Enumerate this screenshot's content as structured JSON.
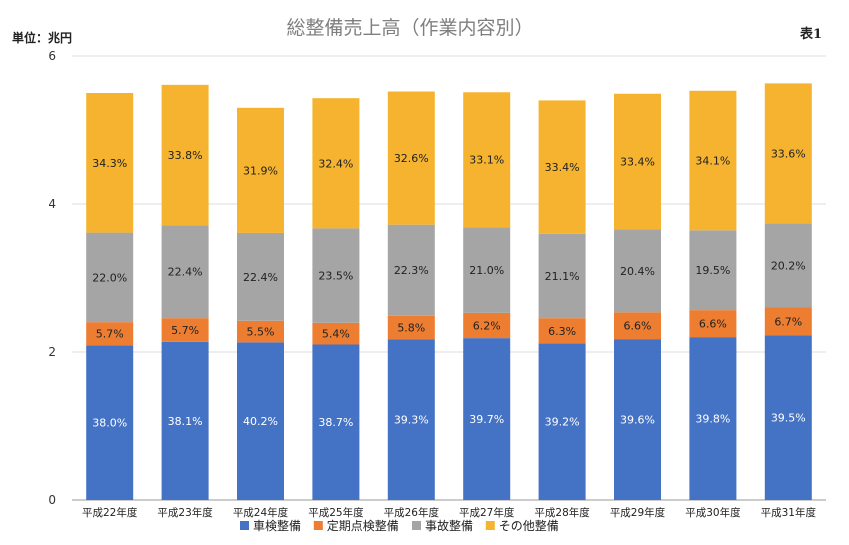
{
  "chart_data": {
    "type": "bar",
    "stacked": true,
    "title": "総整備売上高（作業内容別）",
    "unit_label": "単位：兆円",
    "table_tag": "表1",
    "ylim": [
      0,
      6
    ],
    "yticks": [
      0,
      2,
      4,
      6
    ],
    "grid": true,
    "legend_position": "bottom",
    "categories": [
      "平成22年度",
      "平成23年度",
      "平成24年度",
      "平成25年度",
      "平成26年度",
      "平成27年度",
      "平成28年度",
      "平成29年度",
      "平成30年度",
      "平成31年度"
    ],
    "totals": [
      5.5,
      5.61,
      5.3,
      5.43,
      5.52,
      5.51,
      5.4,
      5.49,
      5.53,
      5.63
    ],
    "series": [
      {
        "name": "車検整備",
        "color": "#4472C4",
        "shares": [
          "38.0%",
          "38.1%",
          "40.2%",
          "38.7%",
          "39.3%",
          "39.7%",
          "39.2%",
          "39.6%",
          "39.8%",
          "39.5%"
        ]
      },
      {
        "name": "定期点検整備",
        "color": "#ED7D31",
        "shares": [
          "5.7%",
          "5.7%",
          "5.5%",
          "5.4%",
          "5.8%",
          "6.2%",
          "6.3%",
          "6.6%",
          "6.6%",
          "6.7%"
        ]
      },
      {
        "name": "事故整備",
        "color": "#A5A5A5",
        "shares": [
          "22.0%",
          "22.4%",
          "22.4%",
          "23.5%",
          "22.3%",
          "21.0%",
          "21.1%",
          "20.4%",
          "19.5%",
          "20.2%"
        ]
      },
      {
        "name": "その他整備",
        "color": "#F5B330",
        "shares": [
          "34.3%",
          "33.8%",
          "31.9%",
          "32.4%",
          "32.6%",
          "33.1%",
          "33.4%",
          "33.4%",
          "34.1%",
          "33.6%"
        ]
      }
    ]
  }
}
